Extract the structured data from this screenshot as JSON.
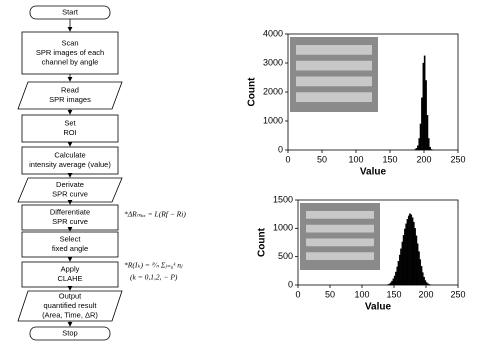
{
  "flowchart": {
    "nodes": [
      {
        "lines": [
          "Start"
        ]
      },
      {
        "lines": [
          "Scan",
          "SPR images of each",
          "channel by angle"
        ]
      },
      {
        "lines": [
          "Read",
          "SPR images"
        ]
      },
      {
        "lines": [
          "Set",
          "ROI"
        ]
      },
      {
        "lines": [
          "Calculate",
          "intensity average (value)"
        ]
      },
      {
        "lines": [
          "Derivate",
          "SPR curve"
        ]
      },
      {
        "lines": [
          "Differentiate",
          "SPR curve"
        ]
      },
      {
        "lines": [
          "Select",
          "fixed angle"
        ]
      },
      {
        "lines": [
          "Apply",
          "CLAHE"
        ]
      },
      {
        "lines": [
          "Output",
          "quantified result",
          "(Area, Time, ΔR)"
        ]
      },
      {
        "lines": [
          "Stop"
        ]
      }
    ],
    "annotations": [
      "*ΔRₘₐₓ = L(Rf − Ri)",
      "*R(Iₖ) = ᴾ⁄ₙ Σⱼ₌₀ᵏ nⱼ",
      "(k = 0,1,2, − P)"
    ]
  },
  "chart_data": [
    {
      "type": "histogram",
      "xlabel": "Value",
      "ylabel": "Count",
      "color": "#000000",
      "bins": [
        186,
        188,
        190,
        192,
        194,
        196,
        198,
        200,
        202,
        204,
        206,
        208,
        210,
        212
      ],
      "values": [
        20,
        60,
        150,
        400,
        900,
        1800,
        3000,
        3250,
        2400,
        1200,
        400,
        100,
        20
      ],
      "xlim": [
        0,
        250
      ],
      "xticks": [
        0,
        50,
        100,
        150,
        200,
        250
      ],
      "ylim": [
        0,
        4000
      ],
      "yticks": [
        0,
        1000,
        2000,
        3000,
        4000
      ]
    },
    {
      "type": "histogram",
      "xlabel": "Value",
      "ylabel": "Count",
      "color": "#000000",
      "bins": [
        140,
        142,
        144,
        146,
        148,
        150,
        152,
        154,
        156,
        158,
        160,
        162,
        164,
        166,
        168,
        170,
        172,
        174,
        176,
        178,
        180,
        182,
        184,
        186,
        188,
        190,
        192,
        194,
        196,
        198,
        200,
        202,
        204,
        206,
        208
      ],
      "values": [
        10,
        20,
        40,
        70,
        110,
        160,
        230,
        320,
        420,
        530,
        640,
        760,
        880,
        990,
        1080,
        1160,
        1220,
        1260,
        1240,
        1190,
        1110,
        1000,
        870,
        730,
        590,
        450,
        330,
        220,
        140,
        80,
        45,
        25,
        12,
        5
      ],
      "xlim": [
        0,
        250
      ],
      "xticks": [
        0,
        50,
        100,
        150,
        200,
        250
      ],
      "ylim": [
        0,
        1500
      ],
      "yticks": [
        0,
        500,
        1000,
        1500
      ]
    }
  ]
}
